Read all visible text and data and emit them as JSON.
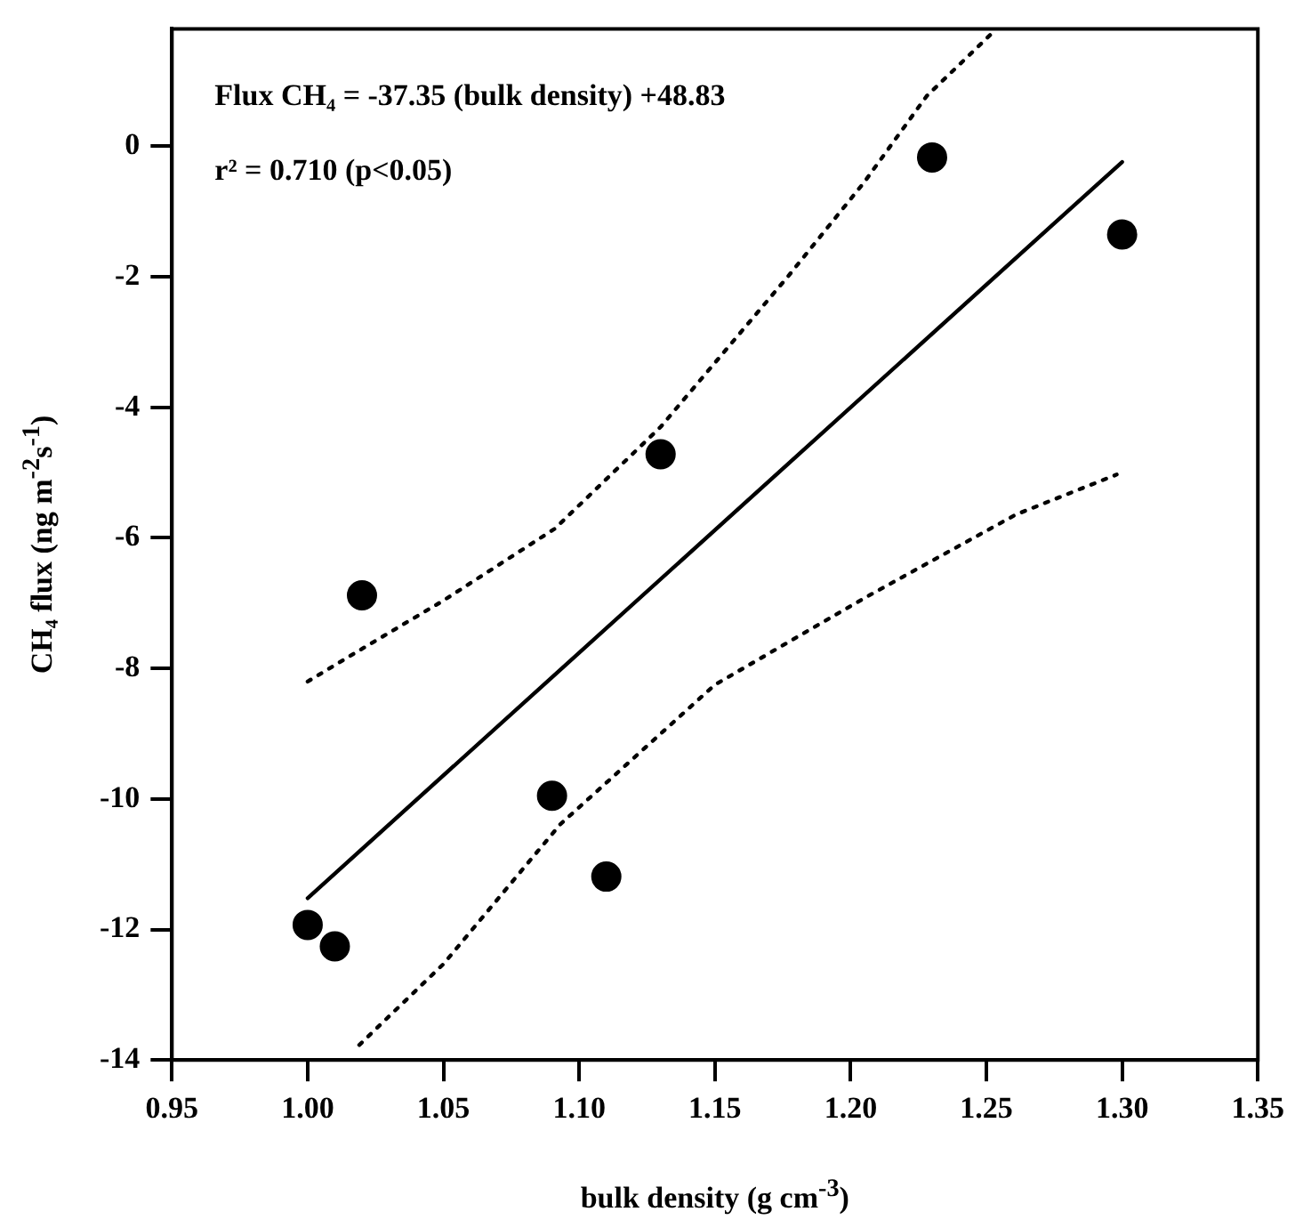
{
  "chart_data": {
    "type": "scatter",
    "xlabel": "bulk density (g cm$^{-3}$)",
    "ylabel": "CH₄ flux (ng m$^{-2}$s$^{-1}$)",
    "annotations": [
      "Flux CH₄ = -37.35 (bulk density) +48.83",
      "r² = 0.710 (p<0.05)"
    ],
    "xlim": [
      0.95,
      1.35
    ],
    "xticks": [
      0.95,
      {
        "value": 1,
        "label": "1.00"
      },
      1.05,
      {
        "value": 1.1,
        "label": "1.10"
      },
      1.15,
      {
        "value": 1.2,
        "label": "1.20"
      },
      1.25,
      {
        "value": 1.3,
        "label": "1.30"
      },
      1.35
    ],
    "ylim": [
      -14,
      1.8
    ],
    "yticks": [
      -14,
      -12,
      -10,
      -8,
      -6,
      -4,
      -2,
      0
    ],
    "grid": false,
    "legend": false,
    "marker": "circle",
    "series": [
      {
        "type": "scatter",
        "color": "#000000",
        "x": [
          1.0,
          1.01,
          1.02,
          1.09,
          1.11,
          1.13,
          1.23,
          1.3
        ],
        "values": [
          -11.93,
          -12.26,
          -6.88,
          -9.95,
          -11.19,
          -4.72,
          -0.17,
          -1.35
        ]
      },
      {
        "type": "line",
        "color": "#000000",
        "line_style": "solid",
        "marker": "none",
        "x": [
          1.0,
          1.3
        ],
        "values": [
          -11.52,
          -0.24
        ]
      },
      {
        "type": "line",
        "color": "#000000",
        "line_style": "dotted",
        "marker": "none",
        "x": [
          1.0,
          1.02,
          1.05,
          1.091,
          1.13,
          1.177,
          1.205,
          1.228,
          1.253
        ],
        "values": [
          -8.2,
          -7.7,
          -6.96,
          -5.86,
          -4.3,
          -1.99,
          -0.55,
          0.77,
          1.77
        ]
      },
      {
        "type": "line",
        "color": "#000000",
        "line_style": "dotted",
        "marker": "none",
        "x": [
          1.019,
          1.05,
          1.093,
          1.15,
          1.206,
          1.261,
          1.298
        ],
        "values": [
          -13.77,
          -12.53,
          -10.39,
          -8.25,
          -6.9,
          -5.64,
          -5.03
        ]
      }
    ]
  }
}
